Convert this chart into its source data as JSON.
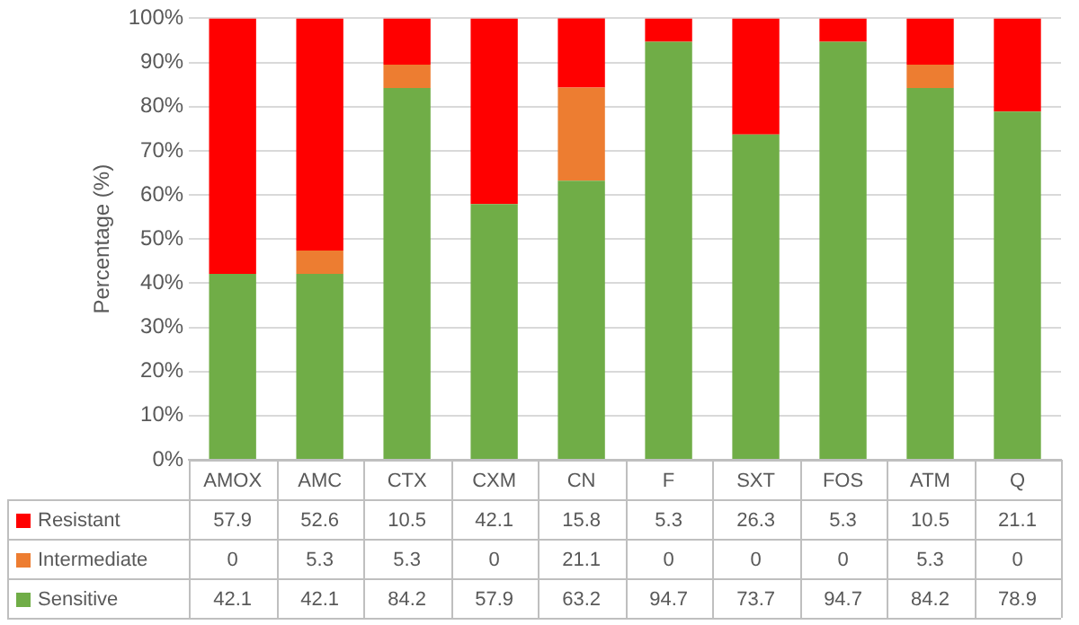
{
  "chart_data": {
    "type": "bar",
    "stacked": true,
    "ylabel": "Percentage (%)",
    "categories": [
      "AMOX",
      "AMC",
      "CTX",
      "CXM",
      "CN",
      "F",
      "SXT",
      "FOS",
      "ATM",
      "Q"
    ],
    "series": [
      {
        "name": "Sensitive",
        "color": "#70ad47",
        "values": [
          42.1,
          42.1,
          84.2,
          57.9,
          63.2,
          94.7,
          73.7,
          94.7,
          84.2,
          78.9
        ]
      },
      {
        "name": "Intermediate",
        "color": "#ed7d31",
        "values": [
          0,
          5.3,
          5.3,
          0,
          21.1,
          0,
          0,
          0,
          5.3,
          0
        ]
      },
      {
        "name": "Resistant",
        "color": "#ff0000",
        "values": [
          57.9,
          52.6,
          10.5,
          42.1,
          15.8,
          5.3,
          26.3,
          5.3,
          10.5,
          21.1
        ]
      }
    ],
    "ylim": [
      0,
      100
    ],
    "yticks": [
      {
        "value": 0,
        "label": "0%"
      },
      {
        "value": 10,
        "label": "10%"
      },
      {
        "value": 20,
        "label": "20%"
      },
      {
        "value": 30,
        "label": "30%"
      },
      {
        "value": 40,
        "label": "40%"
      },
      {
        "value": 50,
        "label": "50%"
      },
      {
        "value": 60,
        "label": "60%"
      },
      {
        "value": 70,
        "label": "70%"
      },
      {
        "value": 80,
        "label": "80%"
      },
      {
        "value": 90,
        "label": "90%"
      },
      {
        "value": 100,
        "label": "100%"
      }
    ],
    "grid": "y",
    "legend": "bottom",
    "data_labels": true
  }
}
